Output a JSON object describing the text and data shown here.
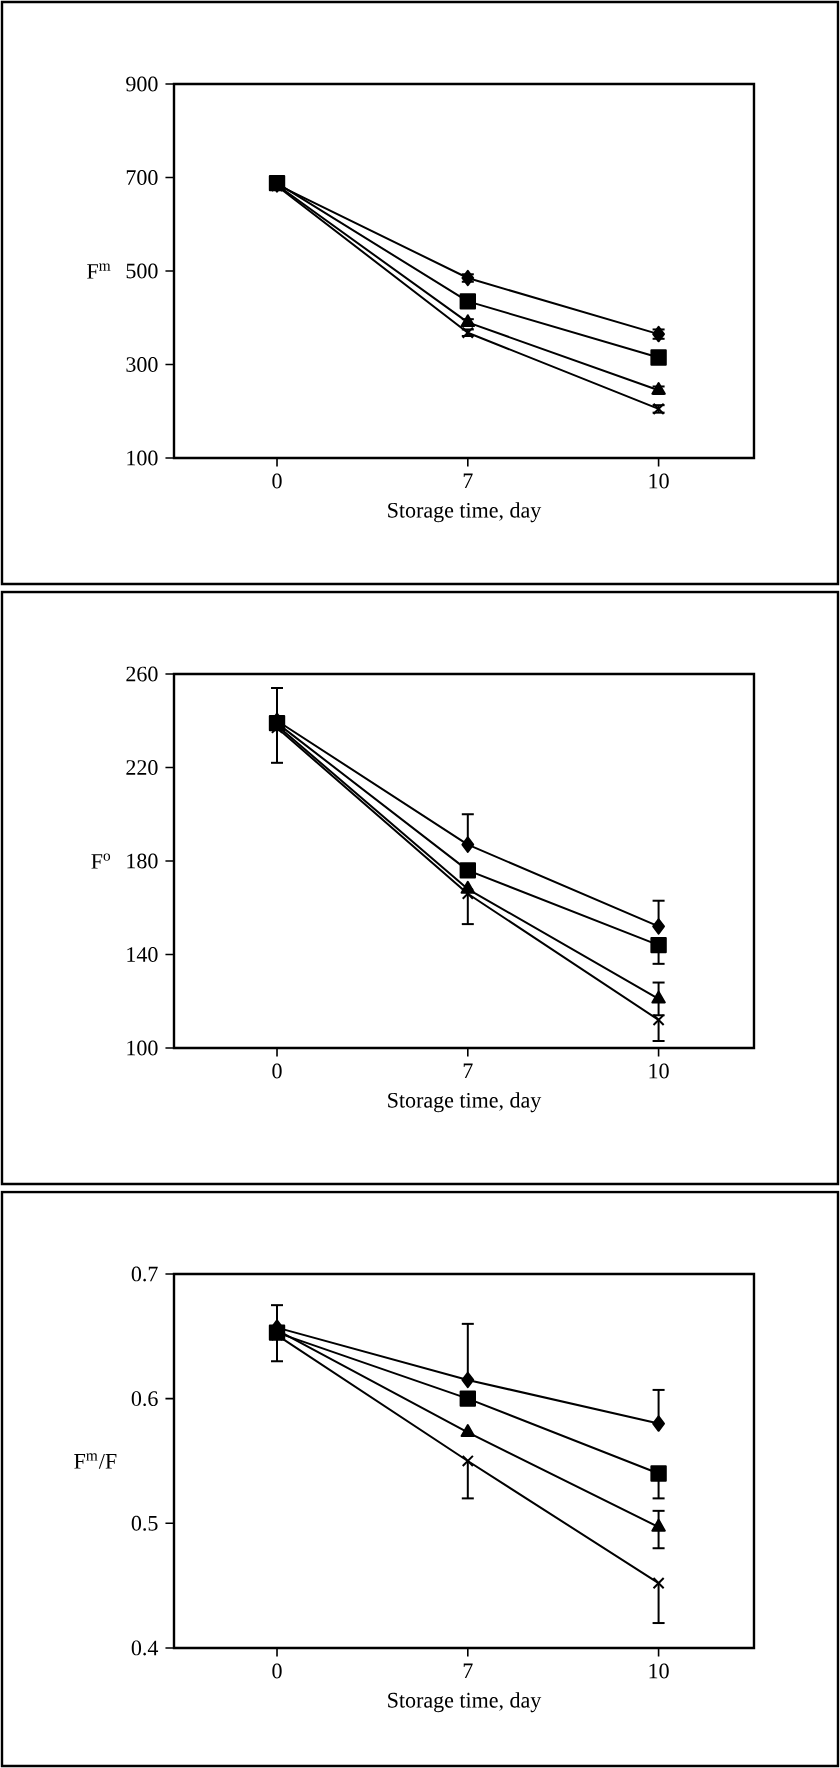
{
  "chart_data": [
    {
      "type": "line",
      "categories": [
        "0",
        "7",
        "10"
      ],
      "xlabel": "Storage time, day",
      "ylabel": "F$^{m}$",
      "ylim": [
        100,
        900
      ],
      "yticks": [
        100,
        300,
        500,
        700,
        900
      ],
      "series": [
        {
          "color": "#000000",
          "marker": "diamond",
          "values": [
            685,
            485,
            365
          ],
          "errors": [
            null,
            8,
            10
          ]
        },
        {
          "color": "#000000",
          "marker": "square",
          "values": [
            688,
            435,
            315
          ],
          "errors": [
            10,
            12,
            10
          ]
        },
        {
          "color": "#000000",
          "marker": "triangle",
          "values": [
            684,
            390,
            245
          ],
          "errors": [
            null,
            7,
            8
          ]
        },
        {
          "color": "#000000",
          "marker": "cross",
          "values": [
            682,
            368,
            205
          ],
          "errors": [
            null,
            7,
            8
          ]
        }
      ]
    },
    {
      "type": "line",
      "categories": [
        "0",
        "7",
        "10"
      ],
      "xlabel": "Storage time, day",
      "ylabel": "F$^{o}$",
      "ylim": [
        100,
        260
      ],
      "yticks": [
        100,
        140,
        180,
        220,
        260
      ],
      "series": [
        {
          "color": "#000000",
          "marker": "diamond",
          "values": [
            240,
            187,
            152
          ],
          "errors": [
            [
              222,
              254
            ],
            [
              187,
              200
            ],
            [
              152,
              163
            ]
          ]
        },
        {
          "color": "#000000",
          "marker": "square",
          "values": [
            239,
            176,
            144
          ],
          "errors": [
            null,
            null,
            [
              136,
              144
            ]
          ]
        },
        {
          "color": "#000000",
          "marker": "triangle",
          "values": [
            238,
            168,
            121
          ],
          "errors": [
            null,
            null,
            [
              114,
              128
            ]
          ]
        },
        {
          "color": "#000000",
          "marker": "cross",
          "values": [
            237,
            166,
            112
          ],
          "errors": [
            null,
            [
              153,
              166
            ],
            [
              103,
              112
            ]
          ]
        }
      ]
    },
    {
      "type": "line",
      "categories": [
        "0",
        "7",
        "10"
      ],
      "xlabel": "Storage time, day",
      "ylabel": "F$^{m}$/F",
      "ylim": [
        0.4,
        0.7
      ],
      "yticks": [
        0.4,
        0.5,
        0.6,
        0.7
      ],
      "series": [
        {
          "color": "#000000",
          "marker": "diamond",
          "values": [
            0.657,
            0.615,
            0.58
          ],
          "errors": [
            null,
            [
              0.615,
              0.66
            ],
            [
              0.58,
              0.607
            ]
          ]
        },
        {
          "color": "#000000",
          "marker": "square",
          "values": [
            0.653,
            0.6,
            0.54
          ],
          "errors": [
            [
              0.63,
              0.675
            ],
            null,
            [
              0.52,
              0.54
            ]
          ]
        },
        {
          "color": "#000000",
          "marker": "triangle",
          "values": [
            0.655,
            0.573,
            0.497
          ],
          "errors": [
            null,
            null,
            [
              0.48,
              0.51
            ]
          ]
        },
        {
          "color": "#000000",
          "marker": "cross",
          "values": [
            0.651,
            0.55,
            0.452
          ],
          "errors": [
            null,
            [
              0.52,
              0.55
            ],
            [
              0.42,
              0.452
            ]
          ]
        }
      ]
    }
  ]
}
